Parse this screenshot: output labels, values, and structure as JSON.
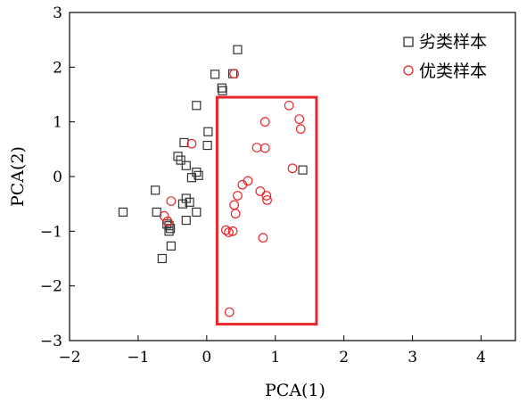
{
  "chart_data": {
    "type": "scatter",
    "xlabel": "PCA(1)",
    "ylabel": "PCA(2)",
    "xlim": [
      -2,
      4.5
    ],
    "ylim": [
      -3,
      3
    ],
    "xticks": [
      -2,
      -1,
      0,
      1,
      2,
      3,
      4
    ],
    "yticks": [
      -3,
      -2,
      -1,
      0,
      1,
      2,
      3
    ],
    "legend_position": "top-right",
    "series": [
      {
        "name": "劣类样本",
        "marker": "square",
        "color": "#333333",
        "points": [
          [
            0.45,
            2.32
          ],
          [
            0.12,
            1.87
          ],
          [
            0.38,
            1.88
          ],
          [
            0.22,
            1.62
          ],
          [
            0.23,
            1.57
          ],
          [
            -0.15,
            1.3
          ],
          [
            0.02,
            0.82
          ],
          [
            0.01,
            0.57
          ],
          [
            -0.33,
            0.62
          ],
          [
            -0.42,
            0.37
          ],
          [
            -0.38,
            0.3
          ],
          [
            -0.3,
            0.2
          ],
          [
            -0.15,
            0.08
          ],
          [
            -0.22,
            -0.02
          ],
          [
            -0.12,
            0.02
          ],
          [
            -0.75,
            -0.25
          ],
          [
            -0.3,
            -0.4
          ],
          [
            -0.25,
            -0.47
          ],
          [
            -0.35,
            -0.5
          ],
          [
            -1.22,
            -0.65
          ],
          [
            -0.73,
            -0.65
          ],
          [
            -0.15,
            -0.65
          ],
          [
            -0.3,
            -0.8
          ],
          [
            -0.55,
            -0.9
          ],
          [
            -0.58,
            -0.87
          ],
          [
            -0.53,
            -0.95
          ],
          [
            -0.55,
            -1.0
          ],
          [
            -0.52,
            -1.27
          ],
          [
            -0.65,
            -1.5
          ],
          [
            1.4,
            0.12
          ]
        ]
      },
      {
        "name": "优类样本",
        "marker": "circle",
        "color": "#e8262a",
        "points": [
          [
            0.4,
            1.88
          ],
          [
            1.2,
            1.3
          ],
          [
            1.35,
            1.05
          ],
          [
            1.37,
            0.87
          ],
          [
            0.85,
            1.0
          ],
          [
            -0.22,
            0.6
          ],
          [
            0.73,
            0.53
          ],
          [
            0.85,
            0.52
          ],
          [
            1.25,
            0.15
          ],
          [
            0.6,
            -0.08
          ],
          [
            0.52,
            -0.15
          ],
          [
            0.45,
            -0.35
          ],
          [
            0.78,
            -0.27
          ],
          [
            0.87,
            -0.35
          ],
          [
            0.88,
            -0.43
          ],
          [
            0.4,
            -0.52
          ],
          [
            0.42,
            -0.68
          ],
          [
            -0.52,
            -0.45
          ],
          [
            -0.62,
            -0.72
          ],
          [
            -0.57,
            -0.82
          ],
          [
            0.28,
            -0.98
          ],
          [
            0.32,
            -1.02
          ],
          [
            0.38,
            -1.0
          ],
          [
            0.82,
            -1.12
          ],
          [
            0.33,
            -2.48
          ]
        ]
      }
    ],
    "highlight_box": {
      "x": [
        0.15,
        1.6
      ],
      "y": [
        -2.7,
        1.45
      ],
      "color": "#e8262a"
    }
  }
}
